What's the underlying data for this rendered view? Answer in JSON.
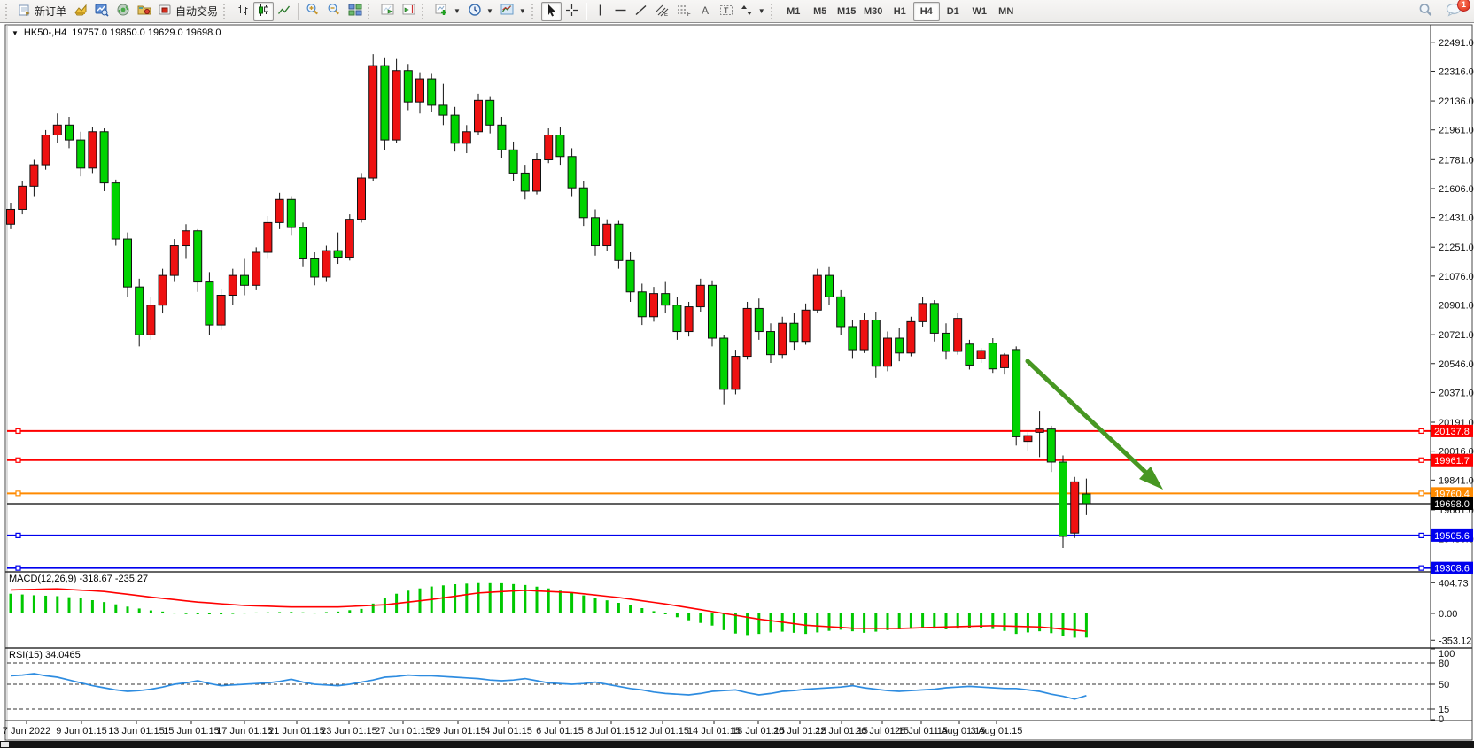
{
  "toolbar": {
    "new_order_label": "新订单",
    "autotrade_label": "自动交易",
    "timeframes": [
      "M1",
      "M5",
      "M15",
      "M30",
      "H1",
      "H4",
      "D1",
      "W1",
      "MN"
    ],
    "active_timeframe": "H4",
    "notification_count": "1",
    "icons": {
      "new-order-icon": "order ticket",
      "charts-icon": "gold chart tile",
      "market-watch-icon": "blue quotes panel",
      "navigator-icon": "green orb",
      "terminal-icon": "folder",
      "autotrade-icon": "red stop chart",
      "bar-chart-icon": "OHLC bars",
      "candlestick-icon": "candles (active)",
      "line-chart-icon": "line",
      "zoom-in-icon": "magnifier plus",
      "zoom-out-icon": "magnifier minus",
      "tile-windows-icon": "colored grid",
      "auto-scroll-icon": "chart play",
      "chart-shift-icon": "chart shift",
      "new-chart-icon": "chart plus",
      "periods-icon": "clock",
      "templates-icon": "chart picture",
      "cursor-icon": "pointer (active)",
      "crosshair-icon": "crosshair",
      "vline-icon": "vertical line",
      "hline-icon": "horizontal line",
      "trendline-icon": "diagonal line",
      "channel-icon": "equidistant channel E",
      "fibonacci-icon": "fibo retracement F",
      "text-icon": "letter A",
      "label-icon": "text label T",
      "arrows-icon": "arrow objects",
      "search-icon": "magnifier",
      "chat-icon": "message bubble"
    }
  },
  "chart_header": {
    "symbol_period": "HK50-,H4",
    "ohlc": "19757.0 19850.0 19629.0 19698.0"
  },
  "indicators": {
    "macd_label": "MACD(12,26,9) -318.67 -235.27",
    "rsi_label": "RSI(15) 34.0465"
  },
  "chart_data": {
    "type": "candlestick",
    "symbol": "HK50-",
    "period": "H4",
    "title_ohlc": {
      "open": 19757.0,
      "high": 19850.0,
      "low": 19629.0,
      "close": 19698.0
    },
    "up_color": "#ee1111",
    "down_color": "#00d300",
    "outline_color": "#111111",
    "price_ticks": [
      22491.0,
      22316.0,
      22136.0,
      21961.0,
      21781.0,
      21606.0,
      21431.0,
      21251.0,
      21076.0,
      20901.0,
      20721.0,
      20546.0,
      20371.0,
      20191.0,
      20016.0,
      19841.0,
      19661.0,
      19486.0,
      19311.0
    ],
    "candles": [
      [
        21390,
        21520,
        21360,
        21480
      ],
      [
        21480,
        21650,
        21450,
        21620
      ],
      [
        21620,
        21780,
        21560,
        21750
      ],
      [
        21750,
        21960,
        21720,
        21930
      ],
      [
        21930,
        22060,
        21880,
        21990
      ],
      [
        21990,
        22040,
        21850,
        21900
      ],
      [
        21900,
        21950,
        21680,
        21730
      ],
      [
        21730,
        21980,
        21700,
        21950
      ],
      [
        21950,
        21970,
        21590,
        21640
      ],
      [
        21640,
        21660,
        21260,
        21300
      ],
      [
        21300,
        21340,
        20950,
        21010
      ],
      [
        21010,
        21060,
        20650,
        20720
      ],
      [
        20720,
        20950,
        20690,
        20900
      ],
      [
        20900,
        21120,
        20850,
        21080
      ],
      [
        21080,
        21300,
        21040,
        21260
      ],
      [
        21260,
        21390,
        21180,
        21350
      ],
      [
        21350,
        21360,
        20980,
        21040
      ],
      [
        21040,
        21100,
        20720,
        20780
      ],
      [
        20780,
        21000,
        20750,
        20960
      ],
      [
        20960,
        21120,
        20900,
        21080
      ],
      [
        21080,
        21180,
        20960,
        21020
      ],
      [
        21020,
        21250,
        20990,
        21220
      ],
      [
        21220,
        21440,
        21180,
        21400
      ],
      [
        21400,
        21580,
        21360,
        21540
      ],
      [
        21540,
        21560,
        21320,
        21370
      ],
      [
        21370,
        21400,
        21130,
        21180
      ],
      [
        21180,
        21220,
        21020,
        21070
      ],
      [
        21070,
        21260,
        21040,
        21230
      ],
      [
        21230,
        21340,
        21150,
        21190
      ],
      [
        21190,
        21450,
        21170,
        21420
      ],
      [
        21420,
        21700,
        21400,
        21670
      ],
      [
        21670,
        22420,
        21650,
        22350
      ],
      [
        22350,
        22400,
        21840,
        21900
      ],
      [
        21900,
        22390,
        21880,
        22320
      ],
      [
        22320,
        22360,
        22080,
        22130
      ],
      [
        22130,
        22310,
        22060,
        22270
      ],
      [
        22270,
        22300,
        22070,
        22110
      ],
      [
        22110,
        22240,
        21990,
        22050
      ],
      [
        22050,
        22100,
        21830,
        21880
      ],
      [
        21880,
        21990,
        21820,
        21950
      ],
      [
        21950,
        22180,
        21930,
        22140
      ],
      [
        22140,
        22160,
        21940,
        21990
      ],
      [
        21990,
        22040,
        21790,
        21840
      ],
      [
        21840,
        21890,
        21650,
        21700
      ],
      [
        21700,
        21750,
        21540,
        21590
      ],
      [
        21590,
        21820,
        21570,
        21780
      ],
      [
        21780,
        21970,
        21760,
        21930
      ],
      [
        21930,
        21980,
        21750,
        21800
      ],
      [
        21800,
        21850,
        21560,
        21610
      ],
      [
        21610,
        21650,
        21380,
        21430
      ],
      [
        21430,
        21480,
        21200,
        21260
      ],
      [
        21260,
        21420,
        21230,
        21390
      ],
      [
        21390,
        21410,
        21120,
        21170
      ],
      [
        21170,
        21220,
        20920,
        20980
      ],
      [
        20980,
        21030,
        20780,
        20830
      ],
      [
        20830,
        21010,
        20800,
        20970
      ],
      [
        20970,
        21040,
        20850,
        20900
      ],
      [
        20900,
        20950,
        20690,
        20740
      ],
      [
        20740,
        20920,
        20710,
        20890
      ],
      [
        20890,
        21060,
        20860,
        21020
      ],
      [
        21020,
        21050,
        20650,
        20700
      ],
      [
        20700,
        20720,
        20300,
        20390
      ],
      [
        20390,
        20630,
        20360,
        20590
      ],
      [
        20590,
        20920,
        20570,
        20880
      ],
      [
        20880,
        20940,
        20690,
        20740
      ],
      [
        20740,
        20790,
        20550,
        20600
      ],
      [
        20600,
        20830,
        20580,
        20790
      ],
      [
        20790,
        20850,
        20630,
        20680
      ],
      [
        20680,
        20910,
        20660,
        20870
      ],
      [
        20870,
        21120,
        20850,
        21080
      ],
      [
        21080,
        21130,
        20900,
        20950
      ],
      [
        20950,
        20990,
        20720,
        20770
      ],
      [
        20770,
        20810,
        20580,
        20630
      ],
      [
        20630,
        20850,
        20610,
        20810
      ],
      [
        20810,
        20860,
        20460,
        20530
      ],
      [
        20530,
        20740,
        20500,
        20700
      ],
      [
        20700,
        20760,
        20560,
        20610
      ],
      [
        20610,
        20830,
        20590,
        20800
      ],
      [
        20800,
        20950,
        20770,
        20910
      ],
      [
        20910,
        20930,
        20680,
        20730
      ],
      [
        20730,
        20790,
        20570,
        20620
      ],
      [
        20620,
        20850,
        20600,
        20820
      ],
      [
        20664,
        20690,
        20510,
        20537
      ],
      [
        20576,
        20640,
        20550,
        20625
      ],
      [
        20670,
        20700,
        20490,
        20514
      ],
      [
        20521,
        20610,
        20480,
        20598
      ],
      [
        20631,
        20650,
        20050,
        20103
      ],
      [
        20075,
        20130,
        20020,
        20110
      ],
      [
        20130,
        20260,
        19980,
        20150
      ],
      [
        20150,
        20170,
        19890,
        19950
      ],
      [
        19950,
        19990,
        19430,
        19500
      ],
      [
        19520,
        19860,
        19490,
        19830
      ],
      [
        19757,
        19850,
        19629,
        19698
      ]
    ],
    "hlines": [
      {
        "price": 20137.8,
        "label": "20137.8",
        "color": "#ff0000"
      },
      {
        "price": 19961.7,
        "label": "19961.7",
        "color": "#ff0000"
      },
      {
        "price": 19760.4,
        "label": "19760.4",
        "color": "#ff8a00"
      },
      {
        "price": 19698.0,
        "label": "19698.0",
        "color": "#000000"
      },
      {
        "price": 19505.6,
        "label": "19505.6",
        "color": "#0000ee"
      },
      {
        "price": 19308.6,
        "label": "19308.6",
        "color": "#0000ee"
      }
    ],
    "current_price": 19698.0,
    "arrow_annotation": {
      "color": "#479722",
      "direction": "down-right"
    },
    "macd": {
      "params": "12,26,9",
      "value": -318.67,
      "signal_value": -235.27,
      "axis_labels": [
        "404.73",
        "0.00",
        "-353.12"
      ],
      "axis_values": [
        404.73,
        0.0,
        -353.12
      ],
      "histogram": [
        260,
        250,
        240,
        234,
        228,
        214,
        200,
        175,
        150,
        120,
        90,
        65,
        40,
        25,
        10,
        3,
        -5,
        -2,
        0,
        5,
        10,
        13,
        15,
        18,
        20,
        15,
        10,
        18,
        25,
        43,
        60,
        130,
        210,
        260,
        300,
        330,
        355,
        370,
        385,
        393,
        400,
        399,
        398,
        387,
        375,
        353,
        330,
        300,
        270,
        238,
        205,
        173,
        140,
        105,
        70,
        30,
        -10,
        -50,
        -90,
        -125,
        -160,
        -220,
        -265,
        -285,
        -270,
        -250,
        -240,
        -255,
        -270,
        -250,
        -230,
        -215,
        -235,
        -255,
        -240,
        -220,
        -210,
        -200,
        -195,
        -200,
        -210,
        -200,
        -190,
        -195,
        -205,
        -230,
        -270,
        -250,
        -235,
        -260,
        -300,
        -320,
        -318.7
      ],
      "signal": [
        310,
        314,
        318,
        322,
        325,
        316,
        307,
        299,
        290,
        271,
        253,
        234,
        215,
        199,
        183,
        166,
        150,
        139,
        127,
        116,
        105,
        100,
        95,
        90,
        85,
        85,
        85,
        85,
        85,
        92,
        100,
        107,
        115,
        132,
        150,
        167,
        185,
        206,
        227,
        249,
        270,
        279,
        288,
        296,
        305,
        297,
        290,
        282,
        275,
        259,
        243,
        226,
        210,
        189,
        167,
        146,
        125,
        100,
        75,
        50,
        25,
        0,
        -25,
        -50,
        -75,
        -95,
        -115,
        -135,
        -155,
        -165,
        -175,
        -185,
        -195,
        -196,
        -196,
        -197,
        -198,
        -193,
        -188,
        -183,
        -178,
        -174,
        -170,
        -166,
        -162,
        -166,
        -170,
        -174,
        -178,
        -192,
        -206,
        -220,
        -235
      ],
      "histogram_color": "#00c800",
      "signal_color": "#ff0000"
    },
    "rsi": {
      "period": 15,
      "value": 34.0465,
      "axis_labels": [
        "100",
        "80",
        "50",
        "15",
        "0"
      ],
      "axis_values": [
        100,
        80,
        50,
        15,
        0
      ],
      "levels": [
        80,
        50,
        15
      ],
      "values": [
        62,
        63,
        65,
        62,
        60,
        56,
        52,
        48,
        45,
        42,
        40,
        41,
        43,
        46,
        50,
        52,
        55,
        51,
        48,
        49,
        50,
        51,
        52,
        54,
        57,
        53,
        50,
        49,
        48,
        50,
        53,
        56,
        60,
        61,
        63,
        62,
        62,
        61,
        60,
        59,
        58,
        56,
        55,
        56,
        58,
        55,
        52,
        51,
        50,
        51,
        53,
        50,
        47,
        44,
        42,
        39,
        37,
        36,
        35,
        37,
        40,
        41,
        42,
        38,
        35,
        37,
        40,
        41,
        43,
        44,
        45,
        46,
        48,
        45,
        43,
        41,
        40,
        41,
        42,
        43,
        45,
        46,
        47,
        46,
        45,
        44,
        44,
        42,
        40,
        36,
        33,
        29,
        34
      ],
      "line_color": "#2e8ce0"
    },
    "time_labels": [
      "7 Jun 2022",
      "9 Jun 01:15",
      "13 Jun 01:15",
      "15 Jun 01:15",
      "17 Jun 01:15",
      "21 Jun 01:15",
      "23 Jun 01:15",
      "27 Jun 01:15",
      "29 Jun 01:15",
      "4 Jul 01:15",
      "6 Jul 01:15",
      "8 Jul 01:15",
      "12 Jul 01:15",
      "14 Jul 01:15",
      "18 Jul 01:15",
      "20 Jul 01:15",
      "22 Jul 01:15",
      "26 Jul 01:15",
      "28 Jul 01:15",
      "1 Aug 01:15",
      "3 Aug 01:15"
    ],
    "time_label_x": [
      30,
      92,
      154,
      216,
      276,
      335,
      394,
      455,
      517,
      574,
      632,
      690,
      748,
      806,
      856,
      903,
      950,
      996,
      1040,
      1083,
      1125
    ]
  }
}
